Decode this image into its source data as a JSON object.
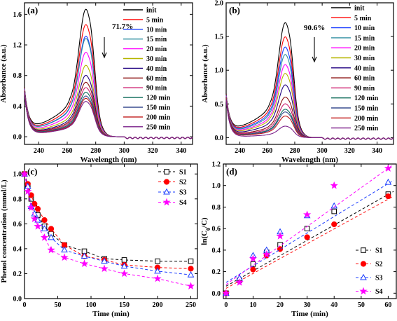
{
  "chart_data": [
    {
      "panel_label": "(a)",
      "type": "line",
      "xlabel": "Wavelength (nm)",
      "ylabel": "Absorbance (a.u.)",
      "xlim": [
        230,
        348
      ],
      "ylim": [
        -0.1,
        1.75
      ],
      "xticks": [
        240,
        260,
        280,
        300,
        320,
        340
      ],
      "yticks": [
        0.0,
        0.4,
        0.8,
        1.2,
        1.6
      ],
      "ytick_labels": [
        "0.0",
        "0.4",
        "0.8",
        "1.2",
        "1.6"
      ],
      "annotation": "71.7%",
      "legend_position": "top-right",
      "series": [
        {
          "name": "init",
          "color": "#000000",
          "peak": 1.66
        },
        {
          "name": "5 min",
          "color": "#ff0000",
          "peak": 1.46
        },
        {
          "name": "10 min",
          "color": "#1a3cff",
          "peak": 1.31
        },
        {
          "name": "15 min",
          "color": "#2e8ea0",
          "peak": 1.28
        },
        {
          "name": "20 min",
          "color": "#ff00ff",
          "peak": 1.1
        },
        {
          "name": "30 min",
          "color": "#b5b500",
          "peak": 0.93
        },
        {
          "name": "40 min",
          "color": "#200080",
          "peak": 0.8
        },
        {
          "name": "60 min",
          "color": "#8b1010",
          "peak": 0.71
        },
        {
          "name": "90 min",
          "color": "#cc1c6e",
          "peak": 0.64
        },
        {
          "name": "120 min",
          "color": "#0b6a58",
          "peak": 0.58
        },
        {
          "name": "150 min",
          "color": "#3a4d8f",
          "peak": 0.53
        },
        {
          "name": "200 min",
          "color": "#c01818",
          "peak": 0.5
        },
        {
          "name": "250 min",
          "color": "#7a1f8a",
          "peak": 0.46
        }
      ]
    },
    {
      "panel_label": "(b)",
      "type": "line",
      "xlabel": "Wavelength (nm)",
      "ylabel": "Absorbance (a.u.)",
      "xlim": [
        230,
        352
      ],
      "ylim": [
        -0.1,
        2.0
      ],
      "xticks": [
        240,
        260,
        280,
        300,
        320,
        340
      ],
      "yticks": [
        0.0,
        0.5,
        1.0,
        1.5,
        2.0
      ],
      "ytick_labels": [
        "0.0",
        "0.5",
        "1.0",
        "1.5",
        "2.0"
      ],
      "annotation": "90.6%",
      "legend_position": "top-right",
      "series": [
        {
          "name": "init",
          "color": "#000000",
          "peak": 1.7
        },
        {
          "name": "5 min",
          "color": "#ff0000",
          "peak": 1.49
        },
        {
          "name": "10 min",
          "color": "#1a3cff",
          "peak": 1.34
        },
        {
          "name": "15 min",
          "color": "#2e8ea0",
          "peak": 1.23
        },
        {
          "name": "20 min",
          "color": "#ff00ff",
          "peak": 1.08
        },
        {
          "name": "30 min",
          "color": "#b5b500",
          "peak": 0.95
        },
        {
          "name": "40 min",
          "color": "#200080",
          "peak": 0.78
        },
        {
          "name": "60 min",
          "color": "#8b1010",
          "peak": 0.6
        },
        {
          "name": "90 min",
          "color": "#cc1c6e",
          "peak": 0.5
        },
        {
          "name": "120 min",
          "color": "#0b6a58",
          "peak": 0.42
        },
        {
          "name": "150 min",
          "color": "#3a4d8f",
          "peak": 0.38
        },
        {
          "name": "200 min",
          "color": "#c01818",
          "peak": 0.32
        },
        {
          "name": "250 min",
          "color": "#7a1f8a",
          "peak": 0.17
        }
      ]
    },
    {
      "panel_label": "(c)",
      "type": "line",
      "xlabel": "Time (min)",
      "ylabel": "Phenol concentration (mmol/L)",
      "xlim": [
        0,
        260
      ],
      "ylim": [
        0,
        1.08
      ],
      "xticks": [
        0,
        50,
        100,
        150,
        200,
        250
      ],
      "yticks": [
        0.0,
        0.2,
        0.4,
        0.6,
        0.8,
        1.0
      ],
      "ytick_labels": [
        "0.0",
        "0.2",
        "0.4",
        "0.6",
        "0.8",
        "1.0"
      ],
      "legend_position": "top-right",
      "x": [
        0,
        5,
        10,
        15,
        20,
        30,
        40,
        60,
        90,
        120,
        150,
        200,
        250
      ],
      "series": [
        {
          "name": "S1",
          "color": "#000000",
          "marker": "square",
          "values": [
            1.0,
            0.91,
            0.8,
            0.73,
            0.67,
            0.58,
            0.52,
            0.43,
            0.38,
            0.32,
            0.31,
            0.3,
            0.3
          ]
        },
        {
          "name": "S2",
          "color": "#ff0000",
          "marker": "circle",
          "values": [
            1.0,
            0.92,
            0.83,
            0.76,
            0.72,
            0.63,
            0.56,
            0.43,
            0.34,
            0.31,
            0.27,
            0.25,
            0.24
          ]
        },
        {
          "name": "S3",
          "color": "#1a3cff",
          "marker": "triangle",
          "values": [
            1.0,
            0.9,
            0.74,
            0.68,
            0.63,
            0.56,
            0.49,
            0.39,
            0.34,
            0.3,
            0.26,
            0.22,
            0.19
          ]
        },
        {
          "name": "S4",
          "color": "#ff00ff",
          "marker": "star",
          "values": [
            1.0,
            0.86,
            0.73,
            0.64,
            0.58,
            0.49,
            0.39,
            0.33,
            0.28,
            0.24,
            0.2,
            0.16,
            0.1
          ]
        }
      ]
    },
    {
      "panel_label": "(d)",
      "type": "scatter",
      "xlabel": "Time (min)",
      "ylabel": "ln(C0/C)",
      "ylabel_main": "ln(C",
      "ylabel_sub0": "0",
      "ylabel_mid": "/C)",
      "xlim": [
        -1,
        63
      ],
      "ylim": [
        -0.05,
        1.2
      ],
      "xticks": [
        0,
        10,
        20,
        30,
        40,
        50,
        60
      ],
      "yticks": [
        0.0,
        0.2,
        0.4,
        0.6,
        0.8,
        1.0,
        1.2
      ],
      "ytick_labels": [
        "0.0",
        "0.2",
        "0.4",
        "0.6",
        "0.8",
        "1.0",
        "1.2"
      ],
      "legend_position": "bottom-right",
      "x": [
        0,
        5,
        10,
        15,
        20,
        30,
        40,
        60
      ],
      "series": [
        {
          "name": "S1",
          "color": "#000000",
          "marker": "square",
          "values": [
            0.0,
            0.12,
            0.27,
            0.38,
            0.45,
            0.6,
            0.76,
            0.92
          ],
          "fit": [
            0.065,
            0.0142
          ]
        },
        {
          "name": "S2",
          "color": "#ff0000",
          "marker": "circle",
          "values": [
            0.0,
            0.12,
            0.22,
            0.35,
            0.41,
            0.52,
            0.64,
            0.9
          ],
          "fit": [
            0.045,
            0.0138
          ]
        },
        {
          "name": "S3",
          "color": "#1a3cff",
          "marker": "triangle",
          "values": [
            0.0,
            0.14,
            0.35,
            0.4,
            0.57,
            0.72,
            0.81,
            1.03
          ],
          "fit": [
            0.1,
            0.0153
          ]
        },
        {
          "name": "S4",
          "color": "#ff00ff",
          "marker": "star",
          "values": [
            0.0,
            0.1,
            0.32,
            0.36,
            0.53,
            0.73,
            1.0,
            1.16
          ],
          "fit": [
            0.08,
            0.018
          ]
        }
      ]
    }
  ]
}
